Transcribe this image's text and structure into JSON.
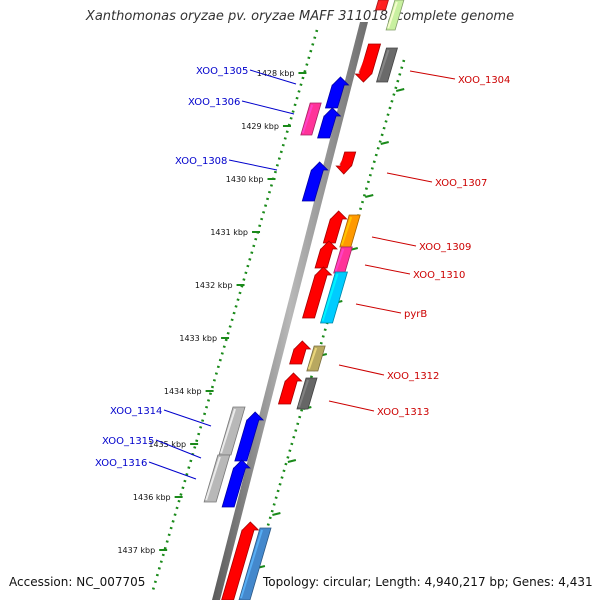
{
  "title": "Xanthomonas oryzae pv. oryzae MAFF 311018, complete genome",
  "footer": {
    "accession": "Accession: NC_007705",
    "summary": "Topology: circular; Length: 4,940,217 bp; Genes: 4,431"
  },
  "colors": {
    "left_label": "#0000cc",
    "right_label": "#cc0000",
    "ruler": "#1a8a1a",
    "axis": "#888888"
  },
  "kbp_ticks": [
    "1428 kbp",
    "1429 kbp",
    "1430 kbp",
    "1431 kbp",
    "1432 kbp",
    "1433 kbp",
    "1434 kbp",
    "1435 kbp",
    "1436 kbp",
    "1437 kbp"
  ],
  "genes_left": [
    "XOO_1305",
    "XOO_1306",
    "XOO_1308",
    "XOO_1314",
    "XOO_1315",
    "XOO_1316"
  ],
  "genes_right": [
    "XOO_1304",
    "XOO_1307",
    "XOO_1309",
    "XOO_1310",
    "pyrB",
    "XOO_1312",
    "XOO_1313"
  ]
}
